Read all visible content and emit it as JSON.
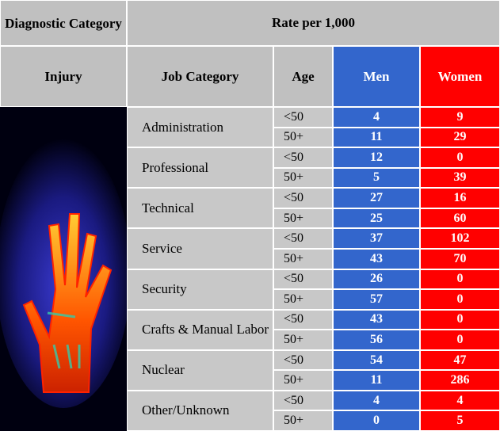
{
  "table": {
    "header": {
      "diagnostic_category": "Diagnostic Category",
      "rate": "Rate per 1,000",
      "injury": "Injury",
      "job_category": "Job Category",
      "age": "Age",
      "men": "Men",
      "women": "Women"
    },
    "groups": [
      {
        "job": "Administration",
        "rows": [
          {
            "age": "<50",
            "men": 4,
            "women": 9
          },
          {
            "age": "50+",
            "men": 11,
            "women": 29
          }
        ]
      },
      {
        "job": "Professional",
        "rows": [
          {
            "age": "<50",
            "men": 12,
            "women": 0
          },
          {
            "age": "50+",
            "men": 5,
            "women": 39
          }
        ]
      },
      {
        "job": "Technical",
        "rows": [
          {
            "age": "<50",
            "men": 27,
            "women": 16
          },
          {
            "age": "50+",
            "men": 25,
            "women": 60
          }
        ]
      },
      {
        "job": "Service",
        "rows": [
          {
            "age": "<50",
            "men": 37,
            "women": 102
          },
          {
            "age": "50+",
            "men": 43,
            "women": 70
          }
        ]
      },
      {
        "job": "Security",
        "rows": [
          {
            "age": "<50",
            "men": 26,
            "women": 0
          },
          {
            "age": "50+",
            "men": 57,
            "women": 0
          }
        ]
      },
      {
        "job": "Crafts & Manual Labor",
        "rows": [
          {
            "age": "<50",
            "men": 43,
            "women": 0
          },
          {
            "age": "50+",
            "men": 56,
            "women": 0
          }
        ]
      },
      {
        "job": "Nuclear",
        "rows": [
          {
            "age": "<50",
            "men": 54,
            "women": 47
          },
          {
            "age": "50+",
            "men": 11,
            "women": 286
          }
        ]
      },
      {
        "job": "Other/Unknown",
        "rows": [
          {
            "age": "<50",
            "men": 4,
            "women": 4
          },
          {
            "age": "50+",
            "men": 0,
            "women": 5
          }
        ]
      }
    ]
  }
}
